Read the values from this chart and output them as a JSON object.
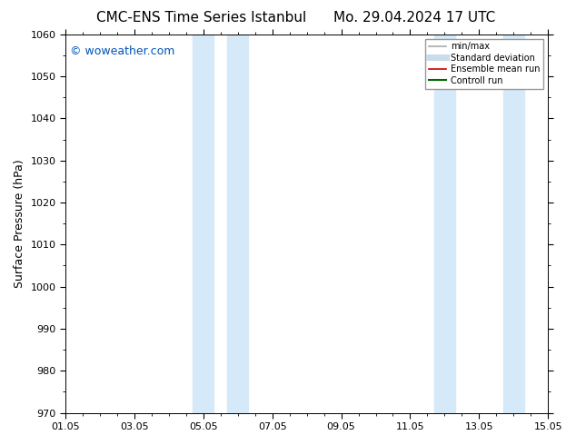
{
  "title_left": "CMC-ENS Time Series Istanbul",
  "title_right": "Mo. 29.04.2024 17 UTC",
  "ylabel": "Surface Pressure (hPa)",
  "ylim": [
    970,
    1060
  ],
  "yticks": [
    970,
    980,
    990,
    1000,
    1010,
    1020,
    1030,
    1040,
    1050,
    1060
  ],
  "xlim": [
    0,
    14
  ],
  "xtick_labels": [
    "01.05",
    "03.05",
    "05.05",
    "07.05",
    "09.05",
    "11.05",
    "13.05",
    "15.05"
  ],
  "xtick_positions": [
    0,
    2,
    4,
    6,
    8,
    10,
    12,
    14
  ],
  "shaded_regions": [
    {
      "x_start": 3.7,
      "x_end": 4.3
    },
    {
      "x_start": 4.7,
      "x_end": 5.3
    },
    {
      "x_start": 10.7,
      "x_end": 11.3
    },
    {
      "x_start": 12.7,
      "x_end": 13.3
    }
  ],
  "shade_color": "#d6e9f8",
  "watermark_text": "© woweather.com",
  "watermark_color": "#0055bb",
  "legend_entries": [
    {
      "label": "min/max",
      "color": "#aaaaaa",
      "lw": 1.2
    },
    {
      "label": "Standard deviation",
      "color": "#c8dcea",
      "lw": 5
    },
    {
      "label": "Ensemble mean run",
      "color": "#cc0000",
      "lw": 1.2
    },
    {
      "label": "Controll run",
      "color": "#006600",
      "lw": 1.5
    }
  ],
  "bg_color": "#ffffff",
  "title_fontsize": 11,
  "ylabel_fontsize": 9,
  "tick_fontsize": 8,
  "watermark_fontsize": 9,
  "legend_fontsize": 7
}
